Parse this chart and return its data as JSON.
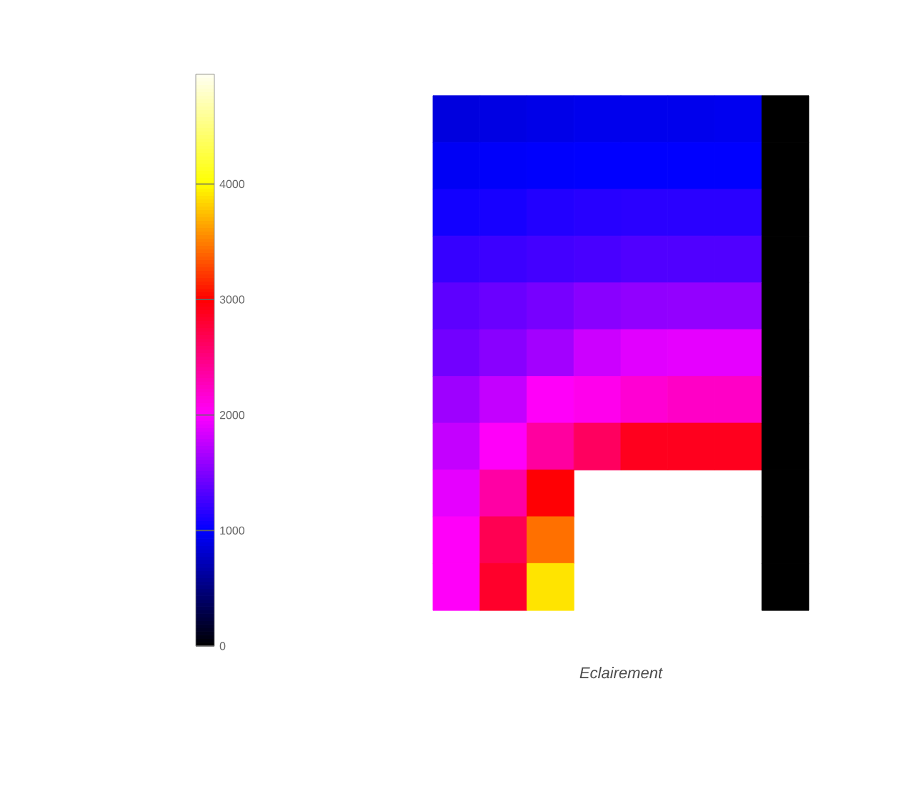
{
  "chart_data": {
    "type": "heatmap",
    "xlabel": "Eclairement",
    "categories": [
      null,
      null,
      null,
      null,
      null,
      null,
      null,
      null
    ],
    "y_categories": [
      null,
      null,
      null,
      null,
      null,
      null,
      null,
      null,
      null,
      null,
      null
    ],
    "cells": [
      [
        860,
        880,
        900,
        920,
        920,
        920,
        930,
        0
      ],
      [
        950,
        970,
        980,
        990,
        990,
        990,
        990,
        0
      ],
      [
        1060,
        1080,
        1120,
        1140,
        1150,
        1150,
        1150,
        0
      ],
      [
        1200,
        1220,
        1250,
        1270,
        1300,
        1300,
        1300,
        0
      ],
      [
        1350,
        1400,
        1450,
        1520,
        1550,
        1560,
        1560,
        0
      ],
      [
        1430,
        1520,
        1620,
        1780,
        1860,
        1880,
        1880,
        0
      ],
      [
        1600,
        1750,
        2000,
        2050,
        2150,
        2200,
        2200,
        0
      ],
      [
        1750,
        2000,
        2350,
        2600,
        2850,
        2850,
        2850,
        0
      ],
      [
        1880,
        2330,
        2950,
        null,
        null,
        null,
        null,
        0
      ],
      [
        2000,
        2650,
        3400,
        null,
        null,
        null,
        null,
        0
      ],
      [
        2000,
        2800,
        3850,
        null,
        null,
        null,
        null,
        0
      ]
    ],
    "clim": [
      0,
      4950
    ],
    "cticks": [
      0,
      1000,
      2000,
      3000,
      4000
    ]
  }
}
